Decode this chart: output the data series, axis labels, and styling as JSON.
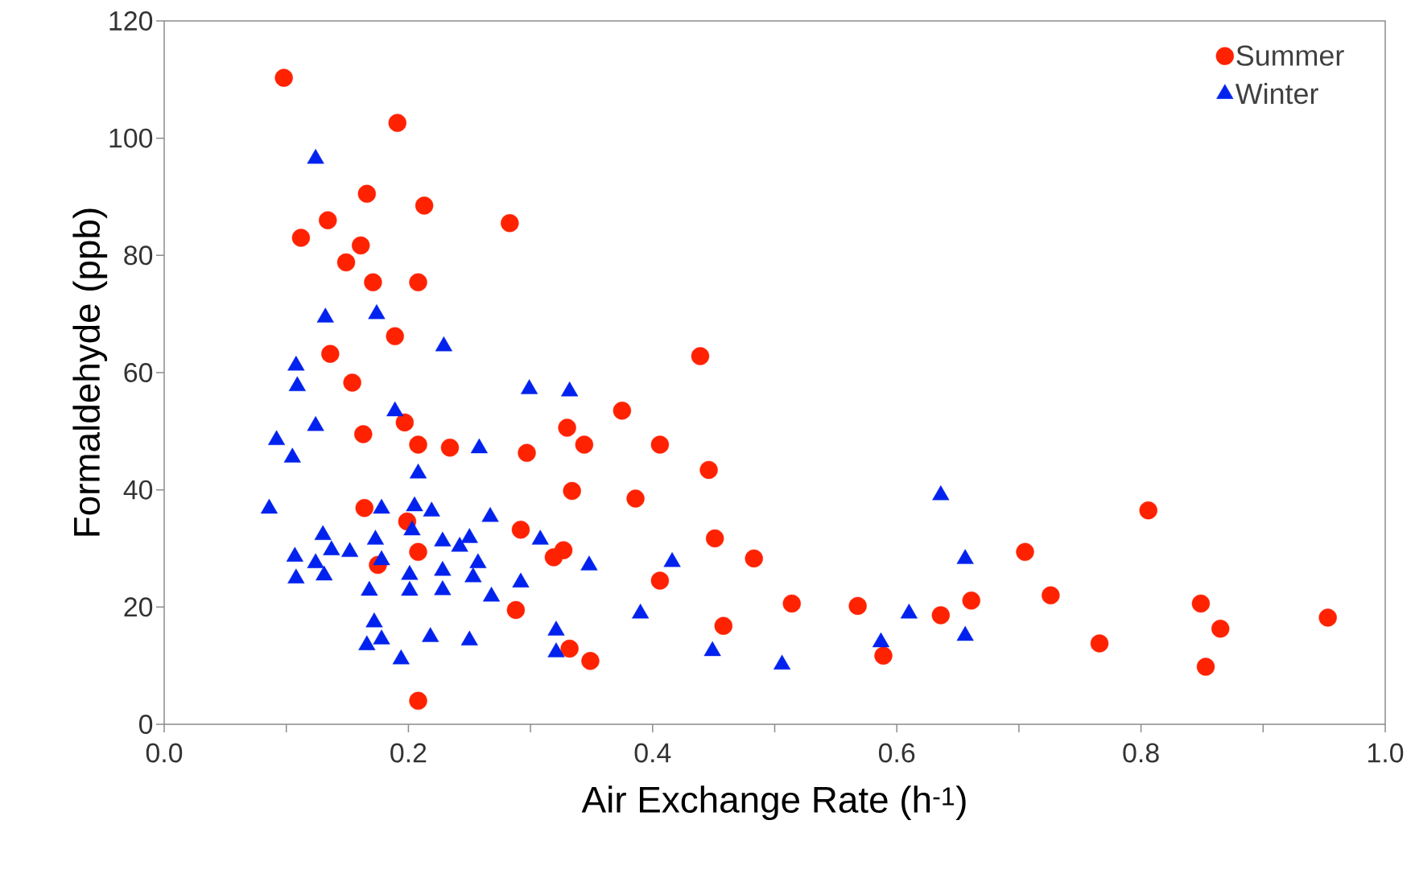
{
  "chart_data": {
    "type": "scatter",
    "xlabel": "Air Exchange Rate (h$^{-1}$)",
    "ylabel": "Formaldehyde  (ppb)",
    "xlim": [
      0,
      1
    ],
    "ylim": [
      0,
      120
    ],
    "xticks": [
      {
        "value": 0,
        "label": "0.0"
      },
      {
        "value": 0.1,
        "label": null
      },
      {
        "value": 0.2,
        "label": "0.2"
      },
      {
        "value": 0.3,
        "label": null
      },
      {
        "value": 0.4,
        "label": "0.4"
      },
      {
        "value": 0.5,
        "label": null
      },
      {
        "value": 0.6,
        "label": "0.6"
      },
      {
        "value": 0.7,
        "label": null
      },
      {
        "value": 0.8,
        "label": "0.8"
      },
      {
        "value": 0.9,
        "label": null
      },
      {
        "value": 1,
        "label": "1.0"
      }
    ],
    "yticks": [
      0,
      20,
      40,
      60,
      80,
      100,
      120
    ],
    "grid": false,
    "legend": "top right",
    "series": [
      {
        "name": "Summer",
        "color": "#ff2200",
        "marker": "circle",
        "x": [
          0.098,
          0.191,
          0.166,
          0.134,
          0.213,
          0.283,
          0.112,
          0.161,
          0.149,
          0.171,
          0.208,
          0.189,
          0.136,
          0.439,
          0.154,
          0.375,
          0.197,
          0.163,
          0.33,
          0.208,
          0.234,
          0.344,
          0.297,
          0.406,
          0.446,
          0.334,
          0.386,
          0.164,
          0.199,
          0.806,
          0.292,
          0.451,
          0.208,
          0.327,
          0.319,
          0.705,
          0.483,
          0.175,
          0.406,
          0.514,
          0.568,
          0.661,
          0.726,
          0.849,
          0.288,
          0.636,
          0.953,
          0.865,
          0.458,
          0.766,
          0.332,
          0.349,
          0.589,
          0.853,
          0.208
        ],
        "values": [
          110.3,
          102.6,
          90.5,
          86,
          88.5,
          85.5,
          83,
          81.7,
          78.8,
          75.4,
          75.4,
          66.2,
          63.2,
          62.8,
          58.3,
          53.5,
          51.5,
          49.5,
          50.6,
          47.7,
          47.2,
          47.7,
          46.3,
          47.7,
          43.4,
          39.8,
          38.5,
          36.9,
          34.6,
          36.5,
          33.2,
          31.7,
          29.4,
          29.7,
          28.5,
          29.4,
          28.3,
          27.2,
          24.5,
          20.6,
          20.2,
          21.1,
          22,
          20.6,
          19.5,
          18.6,
          18.2,
          16.3,
          16.8,
          13.8,
          12.9,
          10.8,
          11.7,
          9.8,
          4
        ]
      },
      {
        "name": "Winter",
        "color": "#0022ee",
        "marker": "triangle",
        "x": [
          0.124,
          0.132,
          0.174,
          0.229,
          0.108,
          0.109,
          0.189,
          0.299,
          0.332,
          0.124,
          0.092,
          0.105,
          0.258,
          0.208,
          0.086,
          0.205,
          0.178,
          0.219,
          0.267,
          0.13,
          0.173,
          0.203,
          0.228,
          0.25,
          0.242,
          0.308,
          0.137,
          0.152,
          0.107,
          0.124,
          0.178,
          0.257,
          0.348,
          0.416,
          0.656,
          0.131,
          0.108,
          0.201,
          0.228,
          0.253,
          0.292,
          0.168,
          0.201,
          0.228,
          0.268,
          0.172,
          0.218,
          0.178,
          0.166,
          0.25,
          0.321,
          0.321,
          0.194,
          0.39,
          0.449,
          0.506,
          0.587,
          0.61,
          0.656,
          0.636
        ],
        "values": [
          96.5,
          69.4,
          70,
          64.5,
          61.2,
          57.7,
          53.4,
          57.2,
          56.8,
          50.9,
          48.5,
          45.5,
          47.1,
          42.8,
          36.8,
          37.2,
          36.8,
          36.3,
          35.4,
          32.3,
          31.5,
          33.1,
          31.2,
          31.8,
          30.3,
          31.5,
          29.7,
          29.4,
          28.6,
          27.5,
          28,
          27.5,
          27.1,
          27.7,
          28.2,
          25.4,
          24.9,
          25.5,
          26.2,
          25.1,
          24.2,
          22.8,
          22.8,
          22.9,
          21.8,
          17.4,
          14.9,
          14.5,
          13.5,
          14.3,
          16,
          12.3,
          11.1,
          18.9,
          12.5,
          10.2,
          14,
          18.9,
          15.1,
          39.1
        ]
      }
    ]
  }
}
